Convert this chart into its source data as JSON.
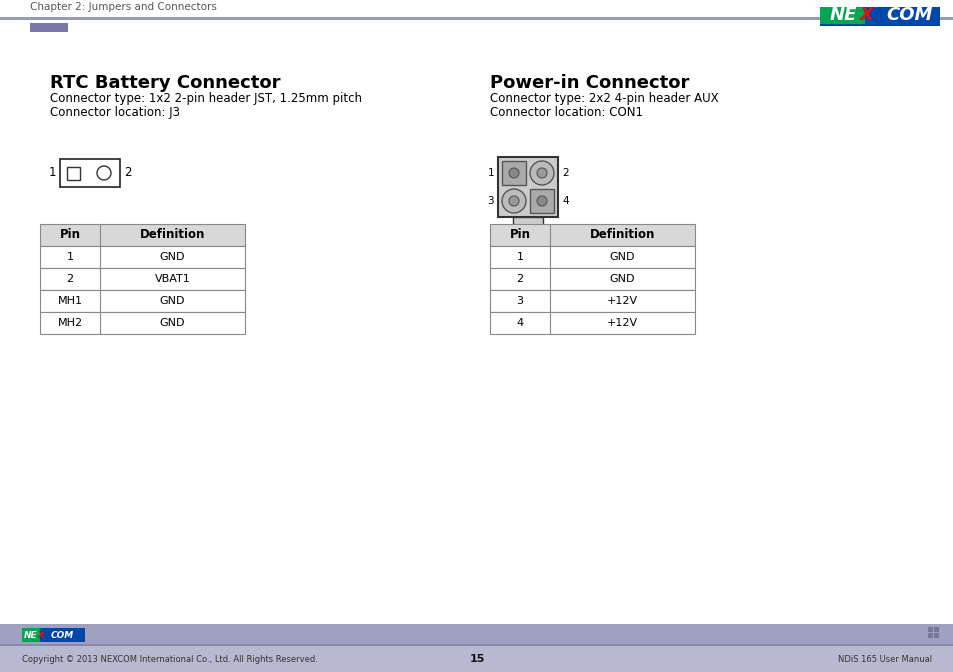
{
  "page_header": "Chapter 2: Jumpers and Connectors",
  "page_number": "15",
  "footer_left": "Copyright © 2013 NEXCOM International Co., Ltd. All Rights Reserved.",
  "footer_right": "NDiS 165 User Manual",
  "left_section_title": "RTC Battery Connector",
  "left_connector_type": "Connector type: 1x2 2-pin header JST, 1.25mm pitch",
  "left_connector_location": "Connector location: J3",
  "right_section_title": "Power-in Connector",
  "right_connector_type": "Connector type: 2x2 4-pin header AUX",
  "right_connector_location": "Connector location: CON1",
  "left_table_headers": [
    "Pin",
    "Definition"
  ],
  "left_table_rows": [
    [
      "1",
      "GND"
    ],
    [
      "2",
      "VBAT1"
    ],
    [
      "MH1",
      "GND"
    ],
    [
      "MH2",
      "GND"
    ]
  ],
  "right_table_headers": [
    "Pin",
    "Definition"
  ],
  "right_table_rows": [
    [
      "1",
      "GND"
    ],
    [
      "2",
      "GND"
    ],
    [
      "3",
      "+12V"
    ],
    [
      "4",
      "+12V"
    ]
  ],
  "bg_color": "#ffffff",
  "table_header_bg": "#d8d8d8",
  "table_border_color": "#888888",
  "text_color": "#000000",
  "title_color": "#000000",
  "nexcom_green": "#00a650",
  "nexcom_blue": "#0047ab",
  "header_line_color": "#9999bb",
  "accent_rect_color": "#7777aa",
  "footer_bar_color": "#a0a0c0",
  "logo_line_green": "#007a3d",
  "logo_line_blue": "#003f8f"
}
